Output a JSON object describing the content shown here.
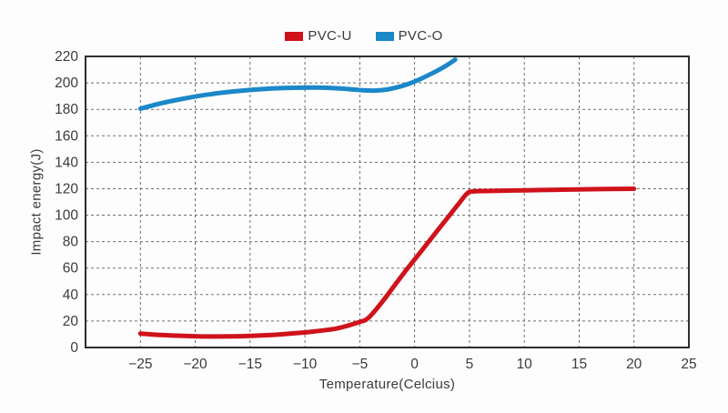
{
  "chart_data": {
    "type": "line",
    "title": "",
    "xlabel": "Temperature(Celcius)",
    "ylabel": "Impact energy(J)",
    "xlim": [
      -30,
      25
    ],
    "ylim": [
      0,
      220
    ],
    "xticks": [
      -25,
      -20,
      -15,
      -10,
      -5,
      0,
      5,
      10,
      15,
      20,
      25
    ],
    "yticks": [
      0,
      20,
      40,
      60,
      80,
      100,
      120,
      140,
      160,
      180,
      200,
      220
    ],
    "grid": "dashed",
    "legend_position": "top-center",
    "colors": {
      "border": "#2d2d2d",
      "grid": "#6e6e6e",
      "tick_text": "#3b3b3b",
      "background": "#fdfdfd"
    },
    "series": [
      {
        "name": "PVC-U",
        "color": "#d0121b",
        "points": [
          [
            -25,
            10.5
          ],
          [
            -23,
            9.4
          ],
          [
            -21,
            8.7
          ],
          [
            -19,
            8.3
          ],
          [
            -17,
            8.4
          ],
          [
            -15,
            8.8
          ],
          [
            -13,
            9.5
          ],
          [
            -11,
            10.7
          ],
          [
            -9,
            12.3
          ],
          [
            -7,
            14.6
          ],
          [
            -5,
            19.3
          ],
          [
            -4.2,
            22.5
          ],
          [
            -3,
            34
          ],
          [
            -2,
            45
          ],
          [
            -1,
            56
          ],
          [
            0,
            66.5
          ],
          [
            1,
            77
          ],
          [
            2,
            87.5
          ],
          [
            3,
            98
          ],
          [
            4,
            108.5
          ],
          [
            4.8,
            116.5
          ],
          [
            5.4,
            118
          ],
          [
            7,
            118.3
          ],
          [
            10,
            118.8
          ],
          [
            13,
            119.2
          ],
          [
            16,
            119.6
          ],
          [
            20,
            120
          ]
        ]
      },
      {
        "name": "PVC-O",
        "color": "#1b88c9",
        "points": [
          [
            -25,
            180.5
          ],
          [
            -23,
            184.8
          ],
          [
            -21,
            188.2
          ],
          [
            -19,
            191
          ],
          [
            -17,
            193.1
          ],
          [
            -15,
            194.6
          ],
          [
            -13,
            195.7
          ],
          [
            -11,
            196.3
          ],
          [
            -9,
            196.4
          ],
          [
            -7,
            195.9
          ],
          [
            -5.5,
            194.9
          ],
          [
            -4.5,
            194.3
          ],
          [
            -3.5,
            194.2
          ],
          [
            -2.5,
            195
          ],
          [
            -1.5,
            196.8
          ],
          [
            -0.5,
            199.4
          ],
          [
            0.5,
            202.8
          ],
          [
            1.5,
            206.8
          ],
          [
            2.5,
            211.2
          ],
          [
            3.2,
            214.8
          ],
          [
            3.7,
            217.5
          ]
        ]
      }
    ]
  }
}
